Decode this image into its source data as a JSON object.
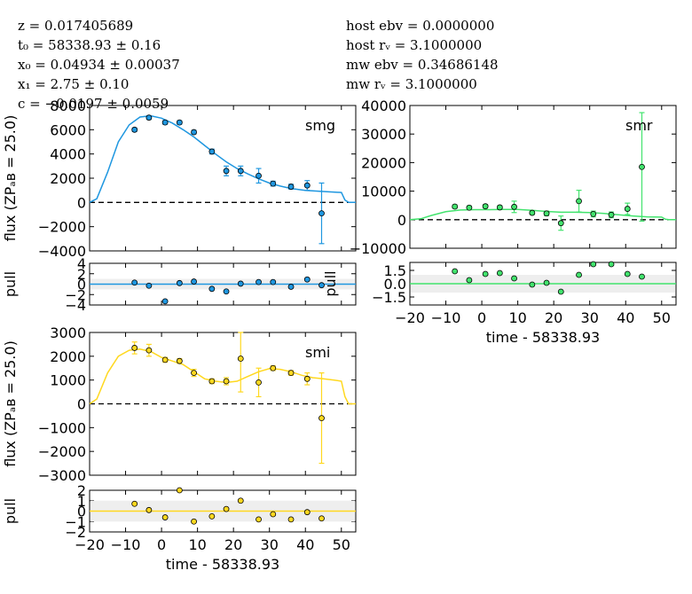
{
  "fit_params": [
    "z = 0.017405689",
    "t₀ = 58338.93 ± 0.16",
    "x₀ = 0.04934 ± 0.00037",
    "x₁ = 2.75 ± 0.10",
    "c = −0.0197 ± 0.0059"
  ],
  "dust_params": [
    "host ebv = 0.0000000",
    "host rᵥ = 3.1000000",
    "mw ebv = 0.34686148",
    "mw rᵥ = 3.1000000"
  ],
  "chart_data": [
    {
      "type": "scatter",
      "band": "smg",
      "color": "#1f97e0",
      "xlabel": "time - 58338.93",
      "ylabel": "flux (ZPₐʙ = 25.0)",
      "ylim": [
        -4000,
        8000
      ],
      "yticks": [
        "8000",
        "6000",
        "4000",
        "2000",
        "0",
        "−2000",
        "−4000"
      ],
      "points": [
        {
          "x": -7.5,
          "y": 6000,
          "err": 150
        },
        {
          "x": -3.5,
          "y": 7000,
          "err": 150
        },
        {
          "x": 1.0,
          "y": 6600,
          "err": 150
        },
        {
          "x": 5.0,
          "y": 6600,
          "err": 150
        },
        {
          "x": 9.0,
          "y": 5800,
          "err": 150
        },
        {
          "x": 14.0,
          "y": 4200,
          "err": 200
        },
        {
          "x": 18.0,
          "y": 2600,
          "err": 400
        },
        {
          "x": 22.0,
          "y": 2600,
          "err": 400
        },
        {
          "x": 27.0,
          "y": 2200,
          "err": 600
        },
        {
          "x": 31.0,
          "y": 1550,
          "err": 200
        },
        {
          "x": 36.0,
          "y": 1300,
          "err": 200
        },
        {
          "x": 40.5,
          "y": 1400,
          "err": 400
        },
        {
          "x": 44.5,
          "y": -900,
          "err": 2500
        }
      ],
      "model": [
        [
          -20,
          0
        ],
        [
          -18,
          300
        ],
        [
          -15,
          2500
        ],
        [
          -12,
          5000
        ],
        [
          -9,
          6400
        ],
        [
          -6,
          7050
        ],
        [
          -3,
          7150
        ],
        [
          0,
          6950
        ],
        [
          3,
          6550
        ],
        [
          6,
          6000
        ],
        [
          9,
          5400
        ],
        [
          12,
          4700
        ],
        [
          15,
          4000
        ],
        [
          18,
          3350
        ],
        [
          21,
          2800
        ],
        [
          24,
          2350
        ],
        [
          27,
          1950
        ],
        [
          30,
          1600
        ],
        [
          33,
          1350
        ],
        [
          36,
          1150
        ],
        [
          40,
          1000
        ],
        [
          45,
          900
        ],
        [
          50,
          820
        ],
        [
          51,
          200
        ],
        [
          52,
          0
        ],
        [
          54,
          0
        ]
      ],
      "pull": {
        "ylim": [
          -4,
          4
        ],
        "yticks": [
          "4",
          "2",
          "0",
          "−2",
          "−4"
        ],
        "points": [
          [
            -7.5,
            0.3
          ],
          [
            -3.5,
            -0.3
          ],
          [
            1,
            -3.3
          ],
          [
            5,
            0.2
          ],
          [
            9,
            0.5
          ],
          [
            14,
            -0.9
          ],
          [
            18,
            -1.4
          ],
          [
            22,
            0.1
          ],
          [
            27,
            0.4
          ],
          [
            31,
            0.4
          ],
          [
            36,
            -0.5
          ],
          [
            40.5,
            0.9
          ],
          [
            44.5,
            -0.2
          ]
        ]
      }
    },
    {
      "type": "scatter",
      "band": "smr",
      "color": "#42e36d",
      "xlabel": "time - 58338.93",
      "ylabel": "",
      "ylim": [
        -10000,
        40000
      ],
      "yticks": [
        "40000",
        "30000",
        "20000",
        "10000",
        "0",
        "−10000"
      ],
      "xticks": [
        "−20",
        "−10",
        "0",
        "10",
        "20",
        "30",
        "40",
        "50"
      ],
      "points": [
        {
          "x": -7.5,
          "y": 4600,
          "err": 600
        },
        {
          "x": -3.5,
          "y": 4200,
          "err": 600
        },
        {
          "x": 1.0,
          "y": 4700,
          "err": 600
        },
        {
          "x": 5.0,
          "y": 4300,
          "err": 600
        },
        {
          "x": 9.0,
          "y": 4500,
          "err": 2000
        },
        {
          "x": 14.0,
          "y": 2400,
          "err": 600
        },
        {
          "x": 18.0,
          "y": 2200,
          "err": 800
        },
        {
          "x": 22.0,
          "y": -1200,
          "err": 2500
        },
        {
          "x": 27.0,
          "y": 6500,
          "err": 3800
        },
        {
          "x": 31.0,
          "y": 2000,
          "err": 1000
        },
        {
          "x": 36.0,
          "y": 1700,
          "err": 1000
        },
        {
          "x": 40.5,
          "y": 3800,
          "err": 2000
        },
        {
          "x": 44.5,
          "y": 18500,
          "err": 19000
        }
      ],
      "model": [
        [
          -20,
          0
        ],
        [
          -17,
          300
        ],
        [
          -14,
          1500
        ],
        [
          -10,
          2800
        ],
        [
          -6,
          3400
        ],
        [
          -2,
          3500
        ],
        [
          2,
          3500
        ],
        [
          6,
          3600
        ],
        [
          10,
          3600
        ],
        [
          14,
          3300
        ],
        [
          18,
          2900
        ],
        [
          22,
          2600
        ],
        [
          26,
          2600
        ],
        [
          30,
          2500
        ],
        [
          34,
          2200
        ],
        [
          38,
          1700
        ],
        [
          42,
          1300
        ],
        [
          46,
          1000
        ],
        [
          50,
          900
        ],
        [
          51,
          200
        ],
        [
          52,
          0
        ],
        [
          54,
          0
        ]
      ],
      "pull": {
        "ylim": [
          -2.4,
          2.4
        ],
        "yticks": [
          "1.5",
          "0.0",
          "−1.5"
        ],
        "points": [
          [
            -7.5,
            1.4
          ],
          [
            -3.5,
            0.4
          ],
          [
            1,
            1.1
          ],
          [
            5,
            1.2
          ],
          [
            9,
            0.6
          ],
          [
            14,
            -0.1
          ],
          [
            18,
            0.1
          ],
          [
            22,
            -0.9
          ],
          [
            27,
            1.0
          ],
          [
            31,
            2.2
          ],
          [
            36,
            2.2
          ],
          [
            40.5,
            1.1
          ],
          [
            44.5,
            0.8
          ]
        ]
      }
    },
    {
      "type": "scatter",
      "band": "smi",
      "color": "#ffd81f",
      "xlabel": "time - 58338.93",
      "ylabel": "flux (ZPₐʙ = 25.0)",
      "ylim": [
        -3000,
        3000
      ],
      "yticks": [
        "3000",
        "2000",
        "1000",
        "0",
        "−1000",
        "−2000",
        "−3000"
      ],
      "xticks": [
        "−20",
        "−10",
        "0",
        "10",
        "20",
        "30",
        "40",
        "50"
      ],
      "points": [
        {
          "x": -7.5,
          "y": 2350,
          "err": 250
        },
        {
          "x": -3.5,
          "y": 2250,
          "err": 250
        },
        {
          "x": 1.0,
          "y": 1850,
          "err": 100
        },
        {
          "x": 5.0,
          "y": 1800,
          "err": 100
        },
        {
          "x": 9.0,
          "y": 1300,
          "err": 150
        },
        {
          "x": 14.0,
          "y": 950,
          "err": 100
        },
        {
          "x": 18.0,
          "y": 950,
          "err": 150
        },
        {
          "x": 22.0,
          "y": 1900,
          "err": 1400
        },
        {
          "x": 27.0,
          "y": 900,
          "err": 600
        },
        {
          "x": 31.0,
          "y": 1500,
          "err": 100
        },
        {
          "x": 36.0,
          "y": 1300,
          "err": 100
        },
        {
          "x": 40.5,
          "y": 1050,
          "err": 250
        },
        {
          "x": 44.5,
          "y": -600,
          "err": 1900
        }
      ],
      "model": [
        [
          -20,
          0
        ],
        [
          -18,
          200
        ],
        [
          -15,
          1300
        ],
        [
          -12,
          2000
        ],
        [
          -9,
          2250
        ],
        [
          -6,
          2300
        ],
        [
          -3,
          2200
        ],
        [
          0,
          1950
        ],
        [
          3,
          1800
        ],
        [
          6,
          1650
        ],
        [
          9,
          1350
        ],
        [
          12,
          1050
        ],
        [
          15,
          950
        ],
        [
          18,
          900
        ],
        [
          21,
          950
        ],
        [
          24,
          1150
        ],
        [
          27,
          1350
        ],
        [
          30,
          1480
        ],
        [
          33,
          1450
        ],
        [
          36,
          1350
        ],
        [
          39,
          1200
        ],
        [
          42,
          1100
        ],
        [
          45,
          1050
        ],
        [
          48,
          1000
        ],
        [
          50,
          950
        ],
        [
          51,
          300
        ],
        [
          52,
          0
        ],
        [
          54,
          0
        ]
      ],
      "pull": {
        "ylim": [
          -2,
          2
        ],
        "yticks": [
          "2",
          "1",
          "0",
          "−1",
          "−2"
        ],
        "points": [
          [
            -7.5,
            0.7
          ],
          [
            -3.5,
            0.1
          ],
          [
            1,
            -0.6
          ],
          [
            5,
            2.0
          ],
          [
            9,
            -1.0
          ],
          [
            14,
            -0.5
          ],
          [
            18,
            0.2
          ],
          [
            22,
            1.0
          ],
          [
            27,
            -0.8
          ],
          [
            31,
            -0.3
          ],
          [
            36,
            -0.8
          ],
          [
            40.5,
            -0.1
          ],
          [
            44.5,
            -0.7
          ]
        ]
      }
    }
  ],
  "axis_labels": {
    "time": "time - 58338.93",
    "pull": "pull"
  }
}
